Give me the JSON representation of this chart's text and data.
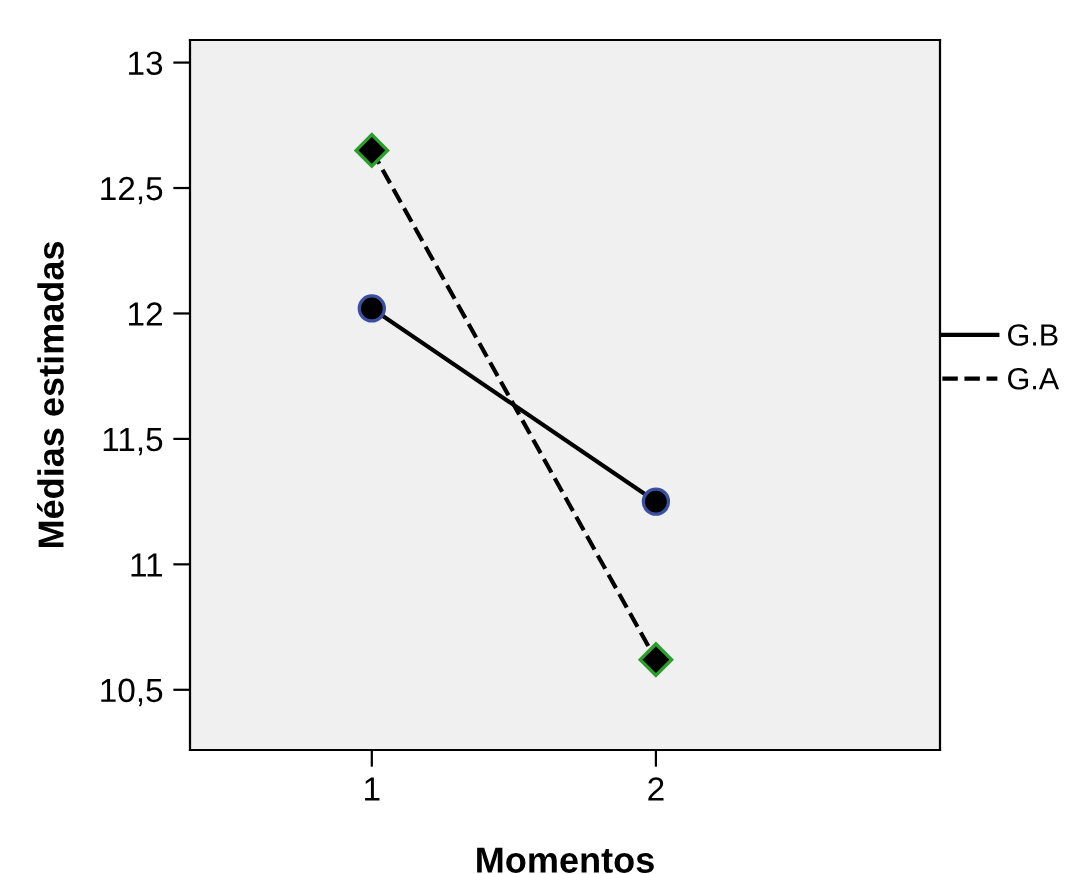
{
  "chart_data": {
    "type": "line",
    "xlabel": "Momentos",
    "ylabel": "Médias estimadas",
    "x": [
      1,
      2
    ],
    "series": [
      {
        "name": "G.B",
        "color": "#000000",
        "values": [
          12.02,
          11.25
        ],
        "marker": "circle",
        "line_style": "solid"
      },
      {
        "name": "G.A",
        "color": "#000000",
        "values": [
          12.65,
          10.62
        ],
        "marker": "diamond",
        "line_style": "dashed"
      }
    ],
    "xlim": [
      0.36,
      3.0
    ],
    "xticks": [
      1,
      2
    ],
    "ylim": [
      10.26,
      13.09
    ],
    "yticks": [
      {
        "value": 10.5,
        "label": "10,5"
      },
      11,
      {
        "value": 11.5,
        "label": "11,5"
      },
      12,
      {
        "value": 12.5,
        "label": "12,5"
      },
      13
    ],
    "grid": false,
    "legend": "right"
  }
}
